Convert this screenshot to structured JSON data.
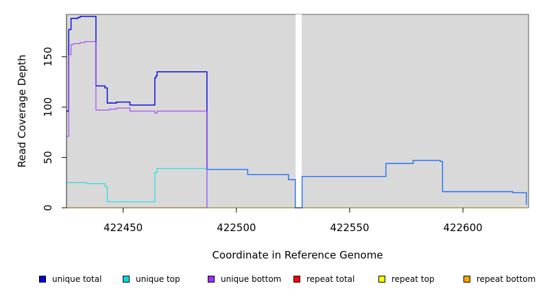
{
  "chart_data": {
    "type": "line",
    "title": "",
    "xlabel": "Coordinate in Reference Genome",
    "ylabel": "Read Coverage Depth",
    "xlim": [
      422425,
      422629
    ],
    "ylim": [
      0,
      192
    ],
    "x_ticks": [
      422450,
      422500,
      422550,
      422600
    ],
    "x_tick_labels": [
      "422450",
      "422500",
      "422550",
      "422600"
    ],
    "y_ticks": [
      0,
      50,
      100,
      150
    ],
    "y_tick_labels": [
      "0",
      "50",
      "100",
      "150"
    ],
    "background": "#d9d9d9",
    "gaps": [
      [
        422526,
        422529
      ]
    ],
    "legend_position": "bottom",
    "series": [
      {
        "name": "unique total",
        "color": "#0000dd",
        "x": [
          422425,
          422426,
          422426.5,
          422427,
          422428,
          422430,
          422431,
          422438,
          422442,
          422443,
          422444,
          422447,
          422453,
          422464,
          422464.5,
          422465,
          422487
        ],
        "y": [
          96,
          177,
          177,
          188,
          188,
          189,
          190,
          121,
          119,
          104,
          104,
          105,
          102,
          129,
          131,
          135,
          38
        ]
      },
      {
        "name": "unique top",
        "color": "#00dddd",
        "x": [
          422425,
          422434,
          422442,
          422443,
          422464,
          422465,
          422487
        ],
        "y": [
          25,
          24,
          21,
          6,
          35,
          39,
          0
        ]
      },
      {
        "name": "unique bottom",
        "color": "#9b30ff",
        "x": [
          422425,
          422426,
          422427,
          422428,
          422431,
          422433,
          422438,
          422442,
          422444,
          422447,
          422453,
          422464,
          422465,
          422487
        ],
        "y": [
          71,
          152,
          162,
          163,
          164,
          165,
          97,
          97,
          98,
          99,
          96,
          94,
          96,
          0
        ]
      },
      {
        "name": "repeat total",
        "color": "#ff0000",
        "x": [
          422425
        ],
        "y": [
          0
        ]
      },
      {
        "name": "repeat top",
        "color": "#ffff00",
        "x": [
          422425
        ],
        "y": [
          0
        ]
      },
      {
        "name": "repeat bottom",
        "color": "#ffa500",
        "x": [
          422425,
          422487
        ],
        "y": [
          0,
          0
        ]
      },
      {
        "name": "",
        "color": "#1e6fff",
        "x": [
          422487,
          422505,
          422523,
          422526,
          422529,
          422566,
          422578,
          422590,
          422591,
          422622,
          422628
        ],
        "y": [
          38,
          33,
          28,
          0,
          31,
          44,
          47,
          46,
          16,
          15,
          3
        ]
      }
    ]
  },
  "legend": {
    "items": [
      {
        "label": "unique total",
        "color": "#0000dd"
      },
      {
        "label": "unique top",
        "color": "#00dddd"
      },
      {
        "label": "unique bottom",
        "color": "#9b30ff"
      },
      {
        "label": "repeat total",
        "color": "#ff0000"
      },
      {
        "label": "repeat top",
        "color": "#ffff00"
      },
      {
        "label": "repeat bottom",
        "color": "#ffa500"
      }
    ]
  }
}
